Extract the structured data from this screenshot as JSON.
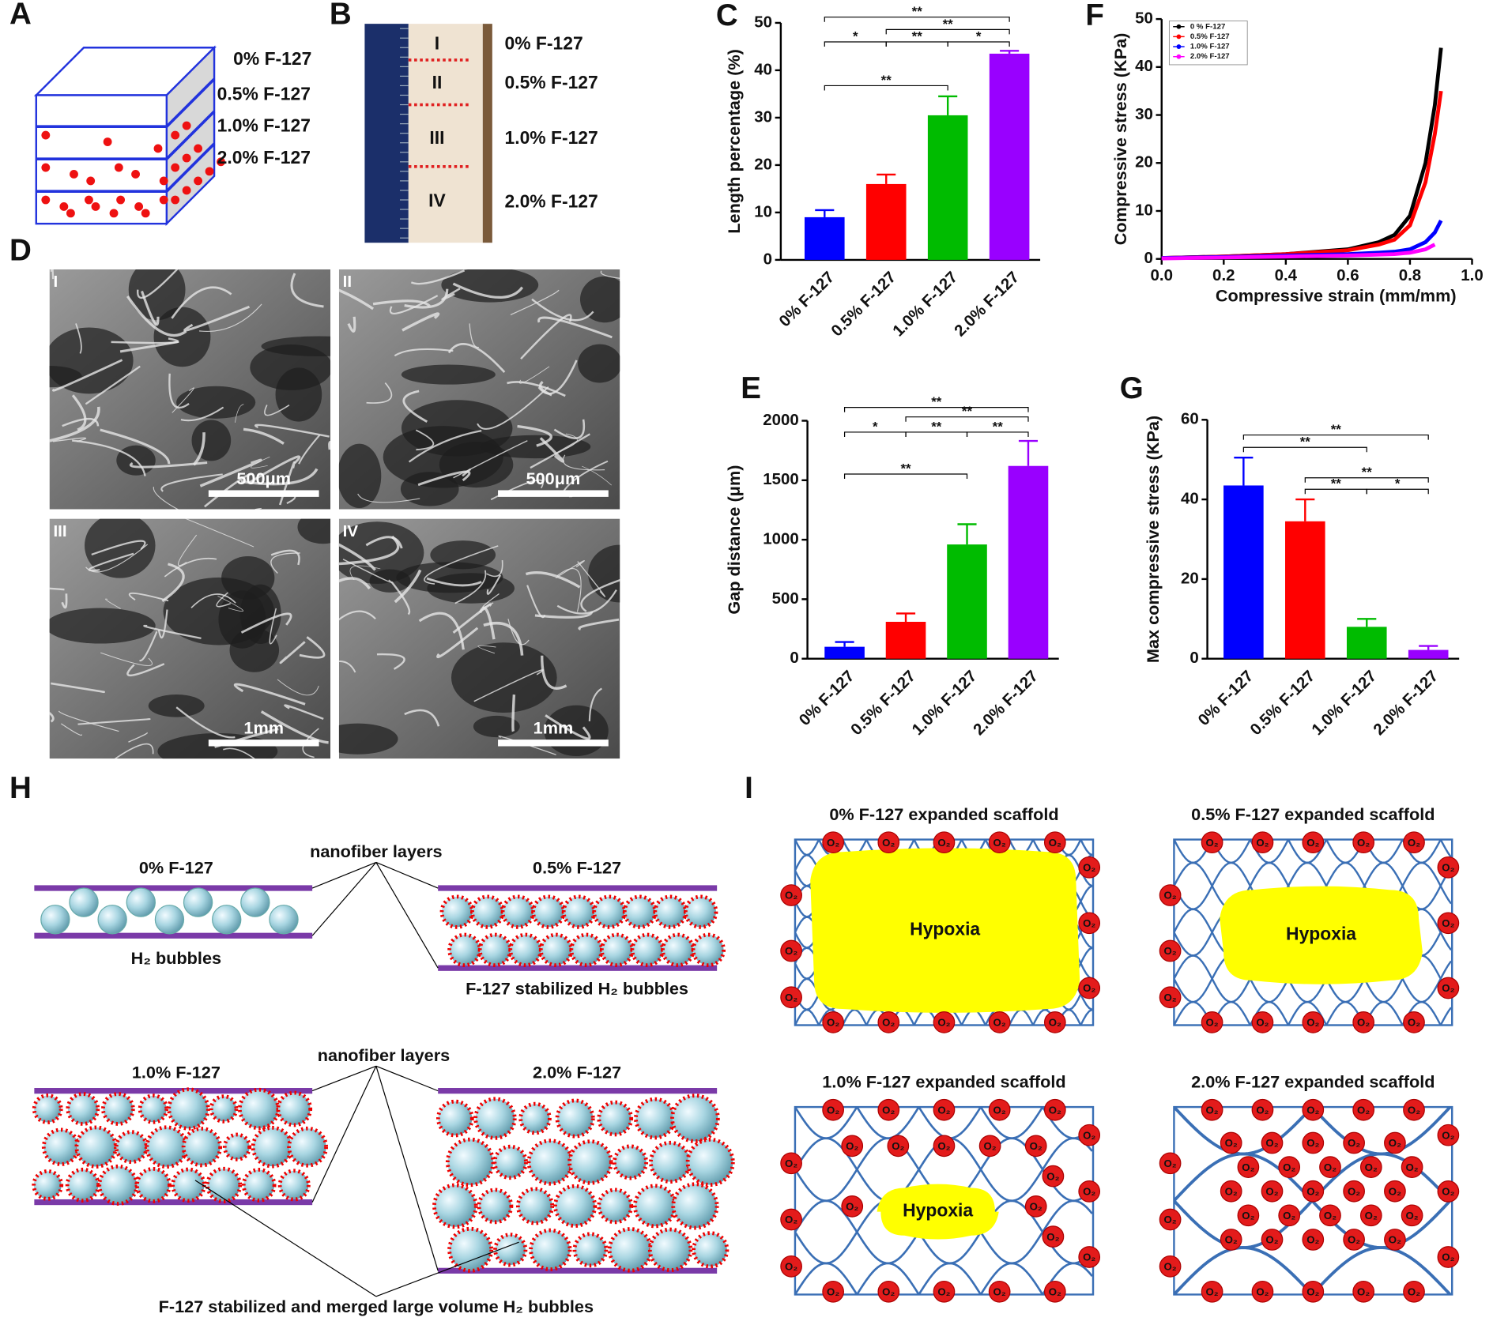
{
  "chart_data": [
    {
      "type": "bar",
      "panel_label": "C",
      "y_label": "Length percentage (%)",
      "categories": [
        "0% F-127",
        "0.5% F-127",
        "1.0% F-127",
        "2.0% F-127"
      ],
      "values": [
        9,
        16,
        30.5,
        43.5
      ],
      "errors": [
        1.5,
        2,
        4,
        0.6
      ],
      "colors": [
        "#0000ff",
        "#ff0000",
        "#00bb00",
        "#9900ff"
      ],
      "ylim": [
        0,
        50
      ],
      "yticks": [
        0,
        10,
        20,
        30,
        40,
        50
      ],
      "significance": [
        "**",
        "**",
        "*",
        "**",
        "*",
        "**"
      ]
    },
    {
      "type": "line",
      "panel_label": "F",
      "x_label": "Compressive strain (mm/mm)",
      "y_label": "Compressive stress (KPa)",
      "x": [
        0,
        0.2,
        0.4,
        0.6,
        0.7,
        0.75,
        0.8,
        0.85,
        0.88,
        0.9
      ],
      "series": [
        {
          "name": "0 % F-127",
          "color": "#000000",
          "values": [
            0.2,
            0.5,
            1,
            2,
            3.5,
            5,
            9,
            20,
            32,
            44
          ]
        },
        {
          "name": "0.5% F-127",
          "color": "#ff0000",
          "values": [
            0.2,
            0.5,
            1,
            1.8,
            3,
            4,
            7,
            16,
            26,
            35
          ]
        },
        {
          "name": "1.0% F-127",
          "color": "#0000ff",
          "values": [
            0.2,
            0.4,
            0.7,
            1,
            1.3,
            1.5,
            2,
            3.5,
            5.5,
            8
          ]
        },
        {
          "name": "2.0% F-127",
          "color": "#ff00ff",
          "values": [
            0.1,
            0.3,
            0.5,
            0.7,
            0.9,
            1,
            1.3,
            2,
            3,
            null
          ]
        }
      ],
      "xlim": [
        0,
        1.0
      ],
      "xticks": [
        {
          "value": 0,
          "label": "0.0"
        },
        0.2,
        0.4,
        0.6,
        0.8,
        {
          "value": 1.0,
          "label": "1.0"
        }
      ],
      "ylim": [
        0,
        50
      ],
      "yticks": [
        0,
        10,
        20,
        30,
        40,
        50
      ],
      "legend": "upper left"
    },
    {
      "type": "bar",
      "panel_label": "E",
      "y_label": "Gap distance (μm)",
      "categories": [
        "0% F-127",
        "0.5% F-127",
        "1.0% F-127",
        "2.0% F-127"
      ],
      "values": [
        100,
        310,
        960,
        1620
      ],
      "errors": [
        40,
        70,
        170,
        210
      ],
      "colors": [
        "#0000ff",
        "#ff0000",
        "#00bb00",
        "#9900ff"
      ],
      "ylim": [
        0,
        2000
      ],
      "yticks": [
        0,
        500,
        1000,
        1500,
        2000
      ],
      "significance": [
        "**",
        "**",
        "*",
        "**",
        "**",
        "**"
      ]
    },
    {
      "type": "bar",
      "panel_label": "G",
      "y_label": "Max compressive stress (KPa)",
      "categories": [
        "0% F-127",
        "0.5% F-127",
        "1.0% F-127",
        "2.0% F-127"
      ],
      "values": [
        43.5,
        34.5,
        8,
        2.2
      ],
      "errors": [
        7,
        5.5,
        2,
        1
      ],
      "colors": [
        "#0000ff",
        "#ff0000",
        "#00bb00",
        "#9900ff"
      ],
      "ylim": [
        0,
        60
      ],
      "yticks": [
        0,
        20,
        40,
        60
      ],
      "significance": [
        "**",
        "**",
        "**",
        "**",
        "*"
      ]
    }
  ],
  "panel_A": {
    "label": "A",
    "layers": [
      "0% F-127",
      "0.5% F-127",
      "1.0% F-127",
      "2.0% F-127"
    ]
  },
  "panel_B": {
    "label": "B",
    "sections": [
      "I",
      "II",
      "III",
      "IV"
    ],
    "layers": [
      "0% F-127",
      "0.5% F-127",
      "1.0% F-127",
      "2.0% F-127"
    ]
  },
  "panel_D": {
    "label": "D",
    "images": [
      {
        "label": "I",
        "scale": "500μm"
      },
      {
        "label": "II",
        "scale": "500μm"
      },
      {
        "label": "III",
        "scale": "1mm"
      },
      {
        "label": "IV",
        "scale": "1mm"
      }
    ]
  },
  "panel_H": {
    "label": "H",
    "groups": [
      "0% F-127",
      "0.5% F-127",
      "1.0% F-127",
      "2.0% F-127"
    ],
    "layers": "nanofiber layers",
    "captions": [
      "H₂ bubbles",
      "F-127 stabilized H₂ bubbles",
      "F-127 stabilized and merged large volume H₂ bubbles"
    ]
  },
  "panel_I": {
    "label": "I",
    "titles": [
      "0% F-127 expanded scaffold",
      "0.5% F-127 expanded scaffold",
      "1.0% F-127 expanded scaffold",
      "2.0% F-127 expanded scaffold"
    ],
    "hypoxia": "Hypoxia",
    "oxygen": "O₂"
  }
}
